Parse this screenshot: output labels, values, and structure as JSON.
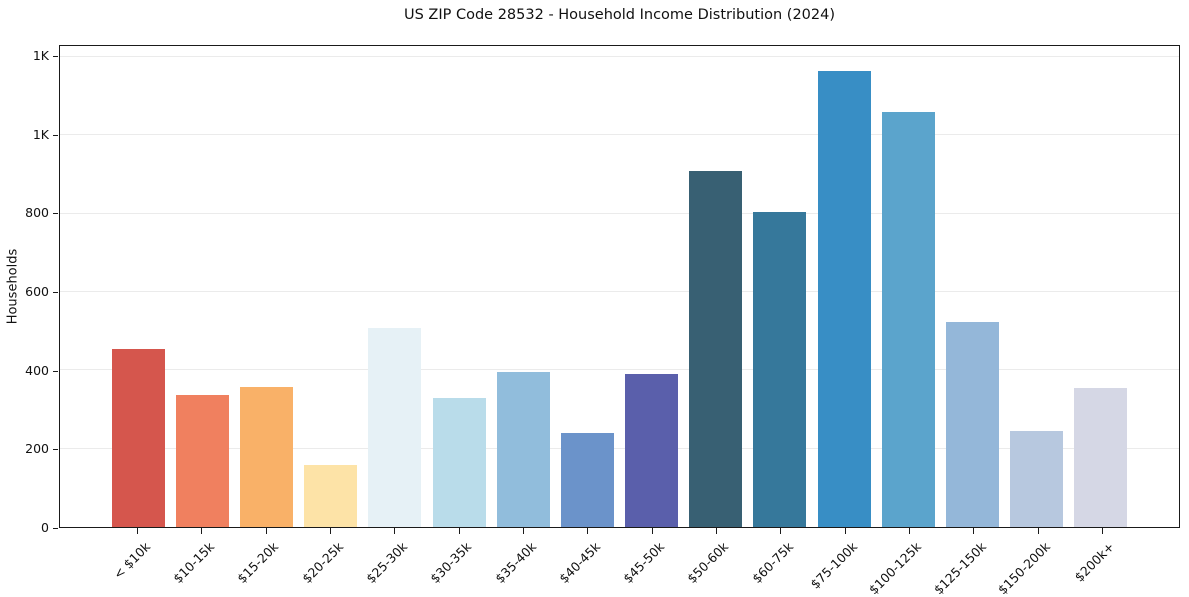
{
  "figure": {
    "background": "#ffffff",
    "spine_color": "#1a1a1a",
    "grid_color": "#ebebeb",
    "text_color": "#111111"
  },
  "chart_data": {
    "type": "bar",
    "title": "US ZIP Code 28532 - Household Income Distribution (2024)",
    "xlabel": "",
    "ylabel": "Households",
    "categories": [
      "< $10k",
      "$10-15k",
      "$15-20k",
      "$20-25k",
      "$25-30k",
      "$30-35k",
      "$35-40k",
      "$40-45k",
      "$45-50k",
      "$50-60k",
      "$60-75k",
      "$75-100k",
      "$100-125k",
      "$125-150k",
      "$150-200k",
      "$200k+"
    ],
    "values": [
      455,
      337,
      357,
      158,
      507,
      330,
      395,
      240,
      390,
      908,
      803,
      1165,
      1060,
      523,
      245,
      354
    ],
    "bar_colors": [
      "#d5564d",
      "#f0805f",
      "#f9b168",
      "#fde3a7",
      "#e6f1f6",
      "#b9dcea",
      "#91bddc",
      "#6b93ca",
      "#5a5fab",
      "#386073",
      "#36789b",
      "#388ec5",
      "#5ba4cc",
      "#94b7d9",
      "#b7c8df",
      "#d5d7e5"
    ],
    "y_ticks": [
      {
        "value": 0,
        "label": "0"
      },
      {
        "value": 200,
        "label": "200"
      },
      {
        "value": 400,
        "label": "400"
      },
      {
        "value": 600,
        "label": "600"
      },
      {
        "value": 800,
        "label": "800"
      },
      {
        "value": 1000,
        "label": "1K"
      },
      {
        "value": 1200,
        "label": "1K"
      }
    ],
    "ylim": [
      0,
      1228
    ],
    "grid": "horizontal",
    "legend": null,
    "x_tick_rotation_deg": 45
  }
}
